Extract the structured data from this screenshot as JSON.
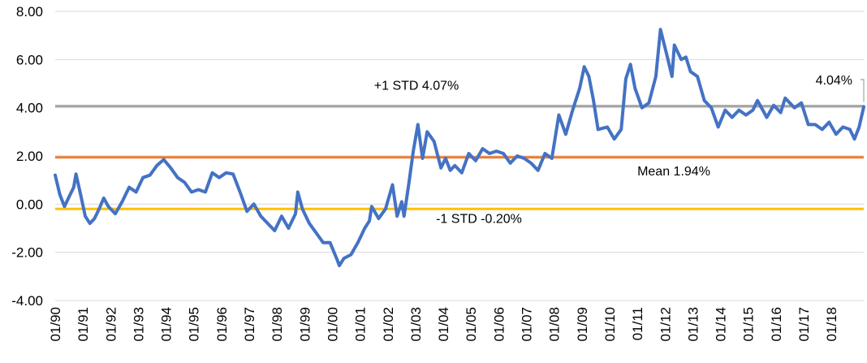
{
  "chart_data": {
    "type": "line",
    "title": "",
    "xlabel": "",
    "ylabel": "",
    "ylim": [
      -4,
      8
    ],
    "y_ticks": [
      "8.00",
      "6.00",
      "4.00",
      "2.00",
      "0.00",
      "-2.00",
      "-4.00"
    ],
    "x_ticks": [
      "01/90",
      "01/91",
      "01/92",
      "01/93",
      "01/94",
      "01/95",
      "01/96",
      "01/97",
      "01/98",
      "01/99",
      "01/00",
      "01/01",
      "01/02",
      "01/03",
      "01/04",
      "01/05",
      "01/06",
      "01/07",
      "01/08",
      "01/09",
      "01/10",
      "01/11",
      "01/12",
      "01/13",
      "01/14",
      "01/15",
      "01/16",
      "01/17",
      "01/18"
    ],
    "grid": "horizontal",
    "legend": "none",
    "series": [
      {
        "color": "#4472C4",
        "points": [
          [
            "1990-01",
            1.2
          ],
          [
            "1990-03",
            0.4
          ],
          [
            "1990-05",
            -0.1
          ],
          [
            "1990-07",
            0.3
          ],
          [
            "1990-09",
            0.7
          ],
          [
            "1990-10",
            1.25
          ],
          [
            "1990-12",
            0.4
          ],
          [
            "1991-02",
            -0.5
          ],
          [
            "1991-04",
            -0.8
          ],
          [
            "1991-06",
            -0.6
          ],
          [
            "1991-08",
            -0.2
          ],
          [
            "1991-10",
            0.25
          ],
          [
            "1991-12",
            -0.1
          ],
          [
            "1992-03",
            -0.4
          ],
          [
            "1992-06",
            0.1
          ],
          [
            "1992-09",
            0.7
          ],
          [
            "1992-12",
            0.5
          ],
          [
            "1993-03",
            1.1
          ],
          [
            "1993-06",
            1.2
          ],
          [
            "1993-09",
            1.6
          ],
          [
            "1993-12",
            1.85
          ],
          [
            "1994-03",
            1.5
          ],
          [
            "1994-06",
            1.1
          ],
          [
            "1994-09",
            0.9
          ],
          [
            "1994-12",
            0.5
          ],
          [
            "1995-03",
            0.6
          ],
          [
            "1995-06",
            0.5
          ],
          [
            "1995-09",
            1.3
          ],
          [
            "1995-12",
            1.1
          ],
          [
            "1996-03",
            1.3
          ],
          [
            "1996-06",
            1.25
          ],
          [
            "1996-09",
            0.5
          ],
          [
            "1996-12",
            -0.3
          ],
          [
            "1997-03",
            0.0
          ],
          [
            "1997-06",
            -0.5
          ],
          [
            "1997-09",
            -0.8
          ],
          [
            "1997-12",
            -1.1
          ],
          [
            "1998-03",
            -0.5
          ],
          [
            "1998-06",
            -1.0
          ],
          [
            "1998-09",
            -0.4
          ],
          [
            "1998-10",
            0.5
          ],
          [
            "1998-12",
            -0.2
          ],
          [
            "1999-03",
            -0.8
          ],
          [
            "1999-06",
            -1.2
          ],
          [
            "1999-09",
            -1.6
          ],
          [
            "1999-12",
            -1.6
          ],
          [
            "2000-03",
            -2.3
          ],
          [
            "2000-04",
            -2.55
          ],
          [
            "2000-06",
            -2.25
          ],
          [
            "2000-09",
            -2.1
          ],
          [
            "2000-12",
            -1.6
          ],
          [
            "2001-03",
            -1.0
          ],
          [
            "2001-05",
            -0.7
          ],
          [
            "2001-06",
            -0.1
          ],
          [
            "2001-09",
            -0.6
          ],
          [
            "2001-12",
            -0.2
          ],
          [
            "2002-03",
            0.8
          ],
          [
            "2002-05",
            -0.5
          ],
          [
            "2002-07",
            0.1
          ],
          [
            "2002-08",
            -0.5
          ],
          [
            "2002-10",
            0.8
          ],
          [
            "2002-12",
            2.2
          ],
          [
            "2003-02",
            3.3
          ],
          [
            "2003-04",
            1.9
          ],
          [
            "2003-06",
            3.0
          ],
          [
            "2003-09",
            2.6
          ],
          [
            "2003-12",
            1.5
          ],
          [
            "2004-02",
            1.9
          ],
          [
            "2004-04",
            1.4
          ],
          [
            "2004-06",
            1.6
          ],
          [
            "2004-09",
            1.3
          ],
          [
            "2004-12",
            2.1
          ],
          [
            "2005-03",
            1.8
          ],
          [
            "2005-06",
            2.3
          ],
          [
            "2005-09",
            2.1
          ],
          [
            "2005-12",
            2.2
          ],
          [
            "2006-03",
            2.1
          ],
          [
            "2006-06",
            1.7
          ],
          [
            "2006-09",
            2.0
          ],
          [
            "2006-12",
            1.9
          ],
          [
            "2007-03",
            1.7
          ],
          [
            "2007-06",
            1.4
          ],
          [
            "2007-09",
            2.1
          ],
          [
            "2007-12",
            1.9
          ],
          [
            "2008-03",
            3.7
          ],
          [
            "2008-06",
            2.9
          ],
          [
            "2008-09",
            3.9
          ],
          [
            "2008-12",
            4.8
          ],
          [
            "2009-02",
            5.7
          ],
          [
            "2009-04",
            5.3
          ],
          [
            "2009-06",
            4.3
          ],
          [
            "2009-08",
            3.1
          ],
          [
            "2009-12",
            3.2
          ],
          [
            "2010-03",
            2.7
          ],
          [
            "2010-06",
            3.1
          ],
          [
            "2010-08",
            5.2
          ],
          [
            "2010-10",
            5.8
          ],
          [
            "2010-12",
            4.8
          ],
          [
            "2011-03",
            4.0
          ],
          [
            "2011-06",
            4.2
          ],
          [
            "2011-09",
            5.3
          ],
          [
            "2011-11",
            7.25
          ],
          [
            "2012-02",
            6.1
          ],
          [
            "2012-04",
            5.3
          ],
          [
            "2012-05",
            6.6
          ],
          [
            "2012-08",
            6.0
          ],
          [
            "2012-10",
            6.1
          ],
          [
            "2012-12",
            5.5
          ],
          [
            "2013-03",
            5.3
          ],
          [
            "2013-06",
            4.3
          ],
          [
            "2013-09",
            4.0
          ],
          [
            "2013-12",
            3.2
          ],
          [
            "2014-03",
            3.9
          ],
          [
            "2014-06",
            3.6
          ],
          [
            "2014-09",
            3.9
          ],
          [
            "2014-12",
            3.7
          ],
          [
            "2015-03",
            3.9
          ],
          [
            "2015-05",
            4.3
          ],
          [
            "2015-09",
            3.6
          ],
          [
            "2015-12",
            4.1
          ],
          [
            "2016-03",
            3.8
          ],
          [
            "2016-05",
            4.4
          ],
          [
            "2016-09",
            4.0
          ],
          [
            "2016-12",
            4.2
          ],
          [
            "2017-03",
            3.3
          ],
          [
            "2017-06",
            3.3
          ],
          [
            "2017-09",
            3.1
          ],
          [
            "2017-12",
            3.4
          ],
          [
            "2018-03",
            2.9
          ],
          [
            "2018-06",
            3.2
          ],
          [
            "2018-09",
            3.1
          ],
          [
            "2018-11",
            2.7
          ],
          [
            "2019-01",
            3.2
          ],
          [
            "2019-03",
            4.04
          ]
        ]
      }
    ],
    "reference_lines": [
      {
        "value": 4.07,
        "color": "#A5A5A5",
        "label": "+1 STD 4.07%"
      },
      {
        "value": 1.94,
        "color": "#ED7D31",
        "label": "Mean 1.94%"
      },
      {
        "value": -0.2,
        "color": "#FFC000",
        "label": "-1 STD -0.20%"
      }
    ],
    "callout": {
      "value": 4.04,
      "label": "4.04%"
    }
  }
}
